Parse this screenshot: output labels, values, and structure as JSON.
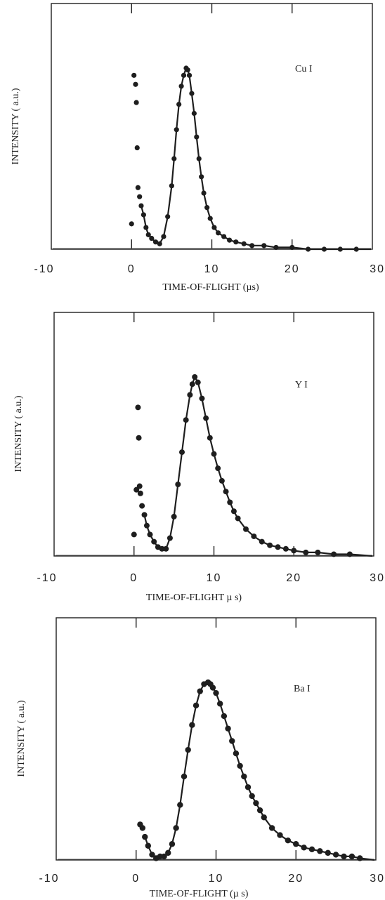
{
  "chart_data": [
    {
      "type": "scatter",
      "label": "Cu I",
      "xlabel": "TIME-OF-FLIGHT (µs)",
      "ylabel": "INTENSITY  ( a.u.)",
      "xlim": [
        -10,
        30
      ],
      "ylim": [
        0,
        1.0
      ],
      "xticks": [
        -10,
        0,
        10,
        20,
        30
      ],
      "grid": false,
      "fit_line": true,
      "series": [
        {
          "x": [
            0.0,
            0.3,
            0.5,
            0.6,
            0.7,
            0.8,
            1.0,
            1.2,
            1.5,
            1.8,
            2.1,
            2.5,
            3.0,
            3.5,
            4.0,
            4.5,
            5.0,
            5.3,
            5.6,
            5.9,
            6.2,
            6.5,
            6.8,
            7.0,
            7.2,
            7.5,
            7.8,
            8.1,
            8.4,
            8.7,
            9.0,
            9.4,
            9.8,
            10.3,
            10.8,
            11.5,
            12.2,
            13.0,
            14.0,
            15.0,
            16.5,
            18.0,
            20.0,
            22.0,
            24.0,
            26.0,
            28.0
          ],
          "y": [
            0.14,
            0.96,
            0.91,
            0.81,
            0.56,
            0.34,
            0.29,
            0.24,
            0.19,
            0.12,
            0.08,
            0.06,
            0.04,
            0.03,
            0.07,
            0.18,
            0.35,
            0.5,
            0.66,
            0.8,
            0.9,
            0.96,
            1.0,
            0.99,
            0.96,
            0.86,
            0.75,
            0.62,
            0.5,
            0.4,
            0.31,
            0.23,
            0.17,
            0.12,
            0.09,
            0.07,
            0.05,
            0.04,
            0.03,
            0.02,
            0.02,
            0.01,
            0.01,
            0.0,
            0.0,
            0.0,
            0.0
          ]
        }
      ]
    },
    {
      "type": "scatter",
      "label": "Y I",
      "xlabel": "TIME-OF-FLIGHT µ s)",
      "ylabel": "INTENSITY  ( a.u.)",
      "xlim": [
        -10,
        30
      ],
      "ylim": [
        0,
        1.0
      ],
      "xticks": [
        -10,
        0,
        10,
        20,
        30
      ],
      "grid": false,
      "fit_line": true,
      "series": [
        {
          "x": [
            0.0,
            0.3,
            0.5,
            0.6,
            0.7,
            0.8,
            1.0,
            1.3,
            1.6,
            2.0,
            2.5,
            3.0,
            3.5,
            4.0,
            4.5,
            5.0,
            5.5,
            6.0,
            6.5,
            7.0,
            7.3,
            7.6,
            8.0,
            8.5,
            9.0,
            9.5,
            10.0,
            10.5,
            11.0,
            11.5,
            12.0,
            12.5,
            13.0,
            14.0,
            15.0,
            16.0,
            17.0,
            18.0,
            19.0,
            20.0,
            21.5,
            23.0,
            25.0,
            27.0
          ],
          "y": [
            0.12,
            0.37,
            0.83,
            0.66,
            0.39,
            0.35,
            0.28,
            0.23,
            0.17,
            0.12,
            0.08,
            0.05,
            0.04,
            0.04,
            0.1,
            0.22,
            0.4,
            0.58,
            0.76,
            0.9,
            0.96,
            1.0,
            0.97,
            0.88,
            0.77,
            0.66,
            0.57,
            0.49,
            0.42,
            0.36,
            0.3,
            0.25,
            0.21,
            0.15,
            0.11,
            0.08,
            0.06,
            0.05,
            0.04,
            0.03,
            0.02,
            0.02,
            0.01,
            0.01
          ]
        }
      ]
    },
    {
      "type": "scatter",
      "label": "Ba I",
      "xlabel": "TIME-OF-FLIGHT (µ s)",
      "ylabel": "INTENSITY  ( a.u.)",
      "xlim": [
        -10,
        30
      ],
      "ylim": [
        0,
        1.0
      ],
      "xticks": [
        -10,
        0,
        10,
        20,
        30
      ],
      "grid": false,
      "fit_line": true,
      "series": [
        {
          "x": [
            0.5,
            0.8,
            1.1,
            1.5,
            2.0,
            2.5,
            3.0,
            3.5,
            4.0,
            4.5,
            5.0,
            5.5,
            6.0,
            6.5,
            7.0,
            7.5,
            8.0,
            8.5,
            9.0,
            9.3,
            9.6,
            10.0,
            10.5,
            11.0,
            11.5,
            12.0,
            12.5,
            13.0,
            13.5,
            14.0,
            14.5,
            15.0,
            15.5,
            16.0,
            17.0,
            18.0,
            19.0,
            20.0,
            21.0,
            22.0,
            23.0,
            24.0,
            25.0,
            26.0,
            27.0,
            28.0
          ],
          "y": [
            0.2,
            0.18,
            0.13,
            0.08,
            0.03,
            0.01,
            0.02,
            0.02,
            0.04,
            0.09,
            0.18,
            0.31,
            0.47,
            0.62,
            0.76,
            0.87,
            0.95,
            0.99,
            1.0,
            0.99,
            0.97,
            0.94,
            0.88,
            0.81,
            0.74,
            0.67,
            0.6,
            0.53,
            0.47,
            0.41,
            0.36,
            0.32,
            0.28,
            0.24,
            0.18,
            0.14,
            0.11,
            0.09,
            0.07,
            0.06,
            0.05,
            0.04,
            0.03,
            0.02,
            0.02,
            0.01
          ]
        }
      ]
    }
  ]
}
